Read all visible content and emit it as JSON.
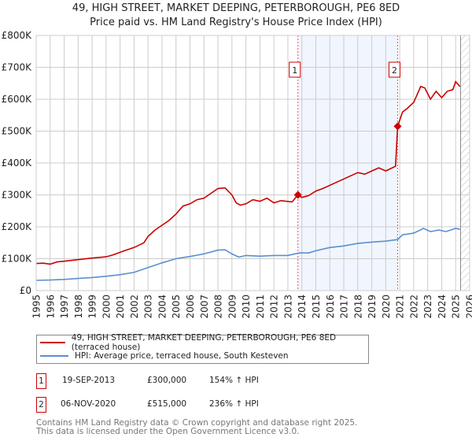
{
  "title": "49, HIGH STREET, MARKET DEEPING, PETERBOROUGH, PE6 8ED",
  "subtitle": "Price paid vs. HM Land Registry's House Price Index (HPI)",
  "chart_data": {
    "type": "line",
    "title": "49, HIGH STREET, MARKET DEEPING, PETERBOROUGH, PE6 8ED",
    "subtitle": "Price paid vs. HM Land Registry's House Price Index (HPI)",
    "xlim": [
      1995,
      2026
    ],
    "ylim": [
      0,
      800000
    ],
    "x_ticks": [
      "1995",
      "1996",
      "1997",
      "1998",
      "1999",
      "2000",
      "2001",
      "2002",
      "2003",
      "2004",
      "2005",
      "2006",
      "2007",
      "2008",
      "2009",
      "2010",
      "2011",
      "2012",
      "2013",
      "2014",
      "2015",
      "2016",
      "2017",
      "2018",
      "2019",
      "2020",
      "2021",
      "2022",
      "2023",
      "2024",
      "2025",
      "2026"
    ],
    "y_ticks": [
      {
        "v": 0,
        "label": "£0"
      },
      {
        "v": 100000,
        "label": "£100K"
      },
      {
        "v": 200000,
        "label": "£200K"
      },
      {
        "v": 300000,
        "label": "£300K"
      },
      {
        "v": 400000,
        "label": "£400K"
      },
      {
        "v": 500000,
        "label": "£500K"
      },
      {
        "v": 600000,
        "label": "£600K"
      },
      {
        "v": 700000,
        "label": "£700K"
      },
      {
        "v": 800000,
        "label": "£800K"
      }
    ],
    "grid": true,
    "shaded_range": [
      2013.72,
      2020.85
    ],
    "forecast_hatch_from": 2025.35,
    "series": [
      {
        "name": "49, HIGH STREET, MARKET DEEPING, PETERBOROUGH, PE6 8ED (terraced house)",
        "color": "#cc0000",
        "x": [
          1995,
          1995.5,
          1996,
          1996.5,
          1997,
          1998,
          1999,
          2000,
          2000.5,
          2001,
          2001.5,
          2002,
          2002.7,
          2003,
          2003.5,
          2004,
          2004.5,
          2005,
          2005.5,
          2006,
          2006.5,
          2007,
          2007.5,
          2008,
          2008.5,
          2009,
          2009.3,
          2009.6,
          2010,
          2010.5,
          2011,
          2011.5,
          2012,
          2012.5,
          2013.3,
          2013.72,
          2014,
          2014.5,
          2015,
          2015.5,
          2016,
          2016.5,
          2017,
          2017.5,
          2018,
          2018.5,
          2019,
          2019.5,
          2020,
          2020.7,
          2020.85,
          2021.2,
          2021.5,
          2022,
          2022.5,
          2022.8,
          2023.2,
          2023.6,
          2024,
          2024.4,
          2024.8,
          2025.0,
          2025.3
        ],
        "y": [
          85000,
          86000,
          83000,
          90000,
          92000,
          97000,
          102000,
          106000,
          112000,
          120000,
          128000,
          135000,
          150000,
          170000,
          190000,
          205000,
          220000,
          240000,
          265000,
          272000,
          285000,
          290000,
          305000,
          320000,
          322000,
          300000,
          275000,
          268000,
          272000,
          285000,
          280000,
          290000,
          275000,
          282000,
          278000,
          300000,
          292000,
          298000,
          312000,
          320000,
          330000,
          340000,
          350000,
          360000,
          370000,
          365000,
          375000,
          385000,
          375000,
          390000,
          515000,
          560000,
          570000,
          590000,
          640000,
          635000,
          600000,
          625000,
          605000,
          625000,
          630000,
          655000,
          640000
        ]
      },
      {
        "name": "HPI: Average price, terraced house, South Kesteven",
        "color": "#5b8fd0",
        "x": [
          1995,
          1996,
          1997,
          1998,
          1999,
          2000,
          2001,
          2002,
          2003,
          2004,
          2005,
          2006,
          2007,
          2008,
          2008.5,
          2009,
          2009.5,
          2010,
          2011,
          2012,
          2013,
          2013.8,
          2014.5,
          2015,
          2016,
          2017,
          2018,
          2019,
          2020,
          2020.85,
          2021.2,
          2022,
          2022.7,
          2023.2,
          2023.8,
          2024.3,
          2025,
          2025.3
        ],
        "y": [
          32000,
          33000,
          35000,
          38000,
          41000,
          45000,
          50000,
          57000,
          72000,
          87000,
          100000,
          107000,
          115000,
          127000,
          128000,
          115000,
          105000,
          110000,
          108000,
          110000,
          110000,
          118000,
          118000,
          125000,
          135000,
          140000,
          148000,
          152000,
          155000,
          160000,
          175000,
          180000,
          195000,
          185000,
          190000,
          185000,
          195000,
          192000
        ]
      }
    ],
    "annotations": [
      {
        "label": "1",
        "x": 2013.72,
        "y": 300000
      },
      {
        "label": "2",
        "x": 2020.85,
        "y": 515000
      }
    ]
  },
  "legend": {
    "red": "49, HIGH STREET, MARKET DEEPING, PETERBOROUGH, PE6 8ED (terraced house)",
    "blue": "HPI: Average price, terraced house, South Kesteven"
  },
  "sales": [
    {
      "num": "1",
      "date": "19-SEP-2013",
      "price": "£300,000",
      "hpi": "154% ↑ HPI"
    },
    {
      "num": "2",
      "date": "06-NOV-2020",
      "price": "£515,000",
      "hpi": "236% ↑ HPI"
    }
  ],
  "footer": {
    "line1": "Contains HM Land Registry data © Crown copyright and database right 2025.",
    "line2": "This data is licensed under the Open Government Licence v3.0."
  }
}
